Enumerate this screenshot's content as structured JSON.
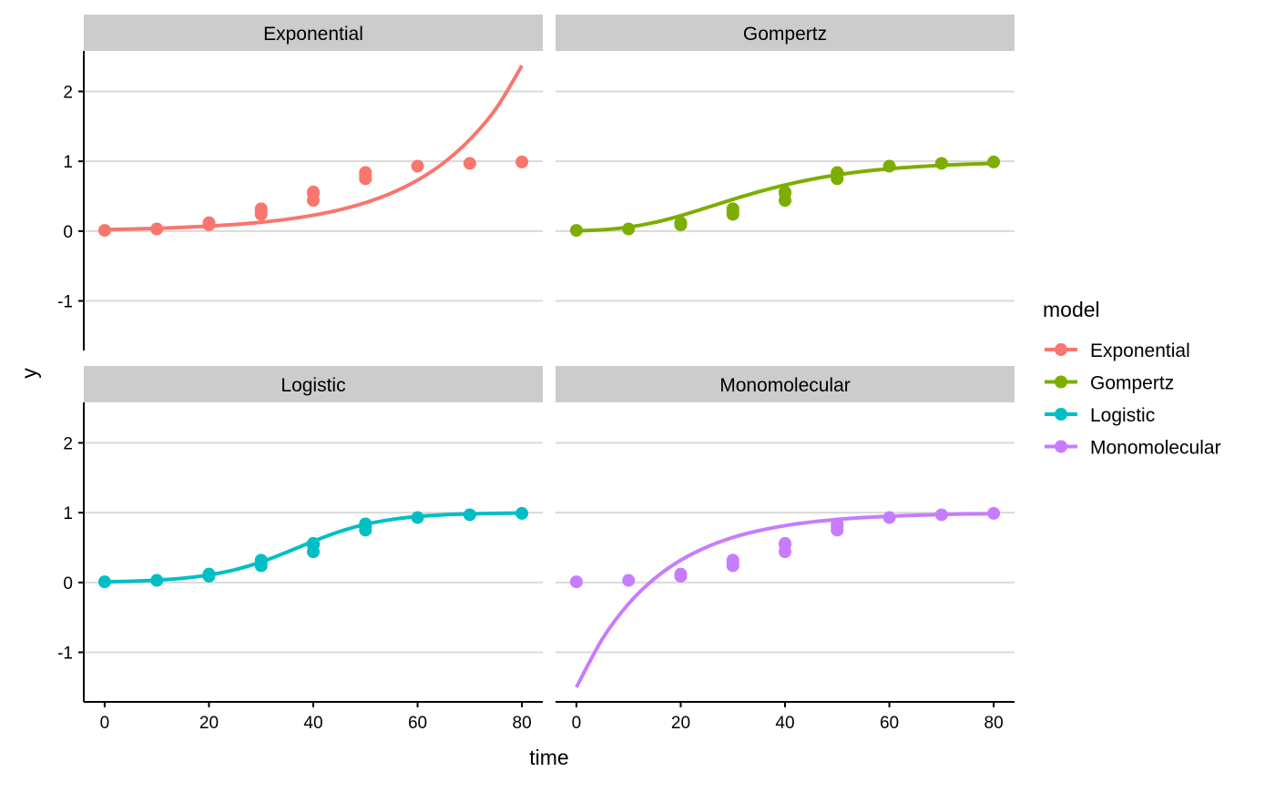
{
  "chart_data": {
    "type": "scatter",
    "facet": "model",
    "xlabel": "time",
    "ylabel": "y",
    "xlim": [
      -4,
      84
    ],
    "ylim": [
      -1.71,
      2.58
    ],
    "xticks": [
      0,
      20,
      40,
      60,
      80
    ],
    "yticks": [
      -1,
      0,
      1,
      2
    ],
    "grid": "horizontal major",
    "legend": {
      "title": "model",
      "position": "right",
      "entries": [
        "Exponential",
        "Gompertz",
        "Logistic",
        "Monomolecular"
      ]
    },
    "colors": {
      "Exponential": "#F8766D",
      "Gompertz": "#7CAE00",
      "Logistic": "#00BFC4",
      "Monomolecular": "#C77CFF"
    },
    "observed": {
      "x": [
        0,
        10,
        20,
        20,
        30,
        30,
        30,
        40,
        40,
        40,
        50,
        50,
        50,
        60,
        70,
        80
      ],
      "y": [
        0.01,
        0.03,
        0.09,
        0.12,
        0.24,
        0.28,
        0.32,
        0.44,
        0.54,
        0.56,
        0.75,
        0.8,
        0.84,
        0.93,
        0.97,
        0.99
      ]
    },
    "fit_x": [
      0,
      5,
      10,
      15,
      20,
      25,
      30,
      35,
      40,
      45,
      50,
      55,
      60,
      65,
      70,
      75,
      80
    ],
    "panels": [
      {
        "title": "Exponential",
        "fit_y": [
          0.022,
          0.029,
          0.039,
          0.053,
          0.071,
          0.095,
          0.127,
          0.17,
          0.227,
          0.304,
          0.407,
          0.545,
          0.73,
          0.977,
          1.31,
          1.75,
          2.37
        ]
      },
      {
        "title": "Gompertz",
        "fit_y": [
          0.004,
          0.019,
          0.056,
          0.124,
          0.221,
          0.336,
          0.454,
          0.564,
          0.661,
          0.741,
          0.805,
          0.855,
          0.893,
          0.921,
          0.943,
          0.958,
          0.969
        ]
      },
      {
        "title": "Logistic",
        "fit_y": [
          0.01,
          0.018,
          0.034,
          0.061,
          0.108,
          0.183,
          0.294,
          0.437,
          0.59,
          0.728,
          0.833,
          0.902,
          0.945,
          0.97,
          0.983,
          0.991,
          0.995
        ]
      },
      {
        "title": "Monomolecular",
        "fit_y": [
          -1.5,
          -0.806,
          -0.305,
          0.057,
          0.319,
          0.508,
          0.645,
          0.743,
          0.814,
          0.866,
          0.903,
          0.93,
          0.949,
          0.963,
          0.974,
          0.981,
          0.986
        ]
      }
    ]
  }
}
